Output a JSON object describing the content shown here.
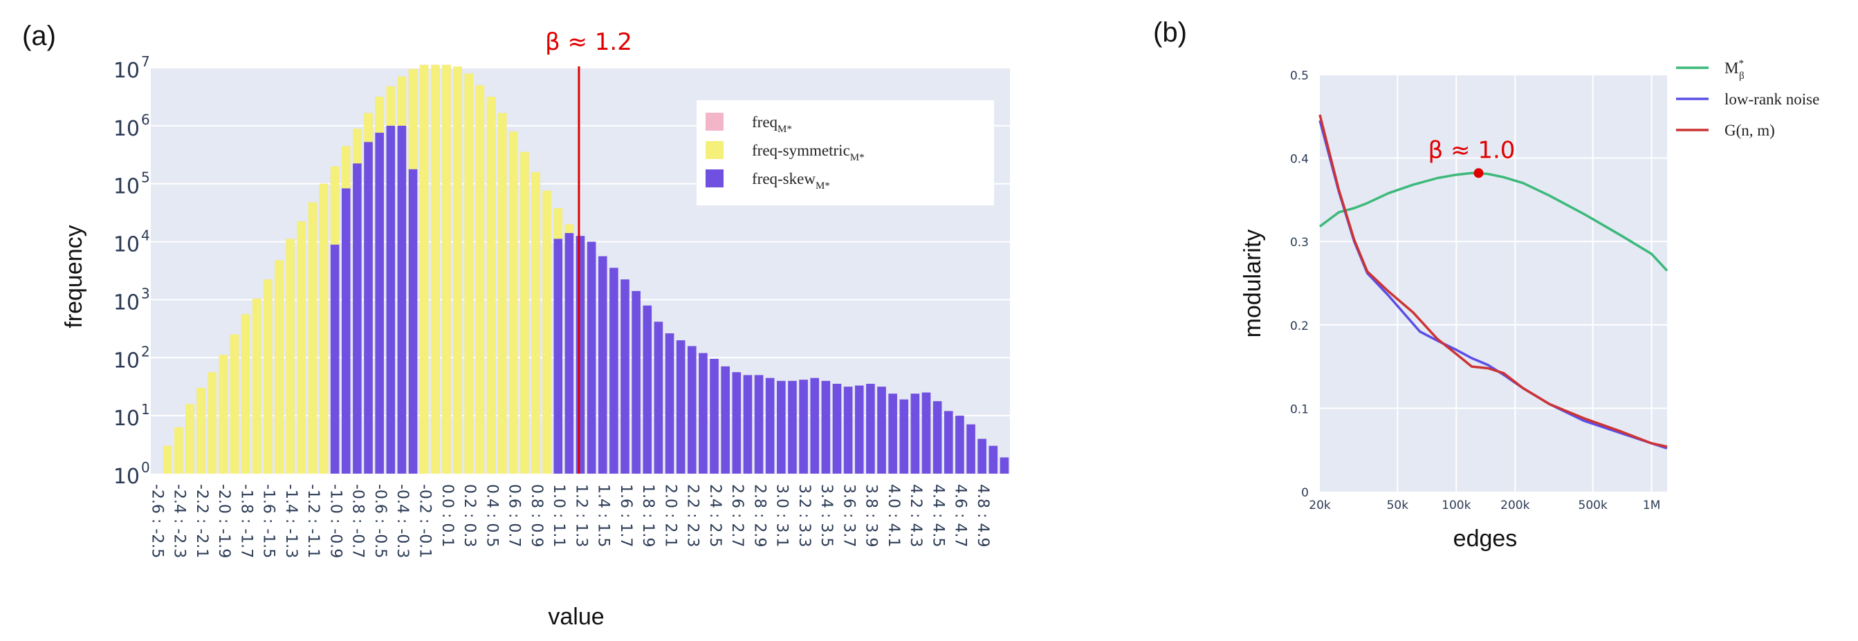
{
  "panels": {
    "a_label": "(a)",
    "b_label": "(b)"
  },
  "chart_data": [
    {
      "type": "bar",
      "panel": "(a)",
      "xlabel": "value",
      "ylabel": "frequency",
      "yscale": "log",
      "ylim_log10": [
        0,
        7
      ],
      "yticks": [
        {
          "base": "10",
          "exp": "7",
          "v": 7
        },
        {
          "base": "10",
          "exp": "6",
          "v": 6
        },
        {
          "base": "10",
          "exp": "5",
          "v": 5
        },
        {
          "base": "10",
          "exp": "4",
          "v": 4
        },
        {
          "base": "10",
          "exp": "3",
          "v": 3
        },
        {
          "base": "10",
          "exp": "2",
          "v": 2
        },
        {
          "base": "10",
          "exp": "1",
          "v": 1
        },
        {
          "base": "10",
          "exp": "0",
          "v": 0
        }
      ],
      "categories": [
        "-2.6 : -2.5",
        "-2.4 : -2.3",
        "-2.2 : -2.1",
        "-2.0 : -1.9",
        "-1.8 : -1.7",
        "-1.6 : -1.5",
        "-1.4 : -1.3",
        "-1.2 : -1.1",
        "-1.0 : -0.9",
        "-0.8 : -0.7",
        "-0.6 : -0.5",
        "-0.4 : -0.3",
        "-0.2 : -0.1",
        "0.0 : 0.1",
        "0.2 : 0.3",
        "0.4 : 0.5",
        "0.6 : 0.7",
        "0.8 : 0.9",
        "1.0 : 1.1",
        "1.2 : 1.3",
        "1.4 : 1.5",
        "1.6 : 1.7",
        "1.8 : 1.9",
        "2.0 : 2.1",
        "2.2 : 2.3",
        "2.4 : 2.5",
        "2.6 : 2.7",
        "2.8 : 2.9",
        "3.0 : 3.1",
        "3.2 : 3.3",
        "3.4 : 3.5",
        "3.6 : 3.7",
        "3.8 : 3.9",
        "4.0 : 4.1",
        "4.2 : 4.3",
        "4.4 : 4.5",
        "4.6 : 4.7",
        "4.8 : 4.9"
      ],
      "bin_start": -2.6,
      "bin_width": 0.1,
      "series": [
        {
          "name": "freq",
          "name_sub": "M*",
          "color": "#f2b6c8",
          "log10_values": [
            null,
            0.48,
            0.8,
            1.2,
            1.48,
            1.75,
            2.05,
            2.4,
            2.75,
            3.02,
            3.35,
            3.68,
            4.05,
            4.35,
            4.68,
            5.0,
            5.3,
            5.65,
            5.95,
            6.22,
            6.5,
            6.68,
            6.85,
            6.98,
            7.05,
            7.08,
            7.07,
            7.02,
            6.9,
            6.7,
            6.5,
            6.22,
            5.9,
            5.55,
            5.2,
            4.88,
            4.58,
            4.3,
            4.05,
            3.8,
            3.6,
            3.4,
            3.2,
            3.0,
            2.8,
            2.62,
            2.42,
            2.3,
            2.2,
            2.08,
            1.98,
            1.85,
            1.75,
            1.7,
            1.7,
            1.65,
            1.6,
            1.6,
            1.62,
            1.65,
            1.6,
            1.55,
            1.5,
            1.52,
            1.55,
            1.5,
            1.38,
            1.28,
            1.38,
            1.4,
            1.25,
            1.08,
            1.0,
            0.85,
            0.6,
            0.48,
            0.28
          ]
        },
        {
          "name": "freq-symmetric",
          "name_sub": "M*",
          "color": "#f5f07a",
          "log10_values": [
            null,
            0.48,
            0.8,
            1.2,
            1.48,
            1.75,
            2.05,
            2.4,
            2.75,
            3.02,
            3.35,
            3.68,
            4.05,
            4.35,
            4.68,
            5.0,
            5.3,
            5.65,
            5.95,
            6.22,
            6.5,
            6.68,
            6.85,
            6.98,
            7.05,
            7.08,
            7.07,
            7.02,
            6.9,
            6.7,
            6.5,
            6.22,
            5.9,
            5.55,
            5.2,
            4.88,
            4.58,
            4.3,
            4.05,
            3.8,
            3.6,
            3.4,
            3.2,
            3.0,
            2.8,
            2.55,
            2.3,
            2.05,
            1.8,
            1.55,
            1.3,
            1.05,
            0.8,
            0.55,
            0.3,
            null,
            null,
            null,
            null,
            null,
            null,
            null,
            null,
            null,
            null,
            null,
            null,
            null,
            null,
            null,
            null,
            null,
            null,
            null,
            null,
            null,
            null
          ]
        },
        {
          "name": "freq-skew",
          "name_sub": "M*",
          "color": "#7050e0",
          "log10_values": [
            null,
            null,
            null,
            null,
            null,
            null,
            null,
            null,
            null,
            null,
            null,
            null,
            null,
            null,
            null,
            null,
            3.95,
            4.92,
            5.35,
            5.72,
            5.88,
            6.0,
            6.0,
            5.25,
            null,
            null,
            null,
            null,
            null,
            null,
            null,
            null,
            null,
            null,
            null,
            null,
            4.05,
            4.15,
            4.1,
            4.0,
            3.75,
            3.55,
            3.35,
            3.15,
            2.9,
            2.62,
            2.42,
            2.3,
            2.2,
            2.08,
            1.98,
            1.85,
            1.75,
            1.7,
            1.7,
            1.65,
            1.6,
            1.6,
            1.62,
            1.65,
            1.6,
            1.55,
            1.5,
            1.52,
            1.55,
            1.5,
            1.38,
            1.28,
            1.38,
            1.4,
            1.25,
            1.08,
            1.0,
            0.85,
            0.6,
            0.48,
            0.28
          ]
        }
      ],
      "vline": {
        "x": 1.2,
        "label": "β ≈ 1.2",
        "color": "#e00000"
      },
      "legend": {
        "placement": "top-right"
      },
      "grid": true
    },
    {
      "type": "line",
      "panel": "(b)",
      "xlabel": "edges",
      "ylabel": "modularity",
      "xscale": "log",
      "xlim": [
        20000,
        1200000
      ],
      "ylim": [
        0,
        0.5
      ],
      "xticks": [
        {
          "v": 20000,
          "label": "20k"
        },
        {
          "v": 50000,
          "label": "50k"
        },
        {
          "v": 100000,
          "label": "100k"
        },
        {
          "v": 200000,
          "label": "200k"
        },
        {
          "v": 500000,
          "label": "500k"
        },
        {
          "v": 1000000,
          "label": "1M"
        }
      ],
      "yticks": [
        {
          "v": 0,
          "label": "0"
        },
        {
          "v": 0.1,
          "label": "0.1"
        },
        {
          "v": 0.2,
          "label": "0.2"
        },
        {
          "v": 0.3,
          "label": "0.3"
        },
        {
          "v": 0.4,
          "label": "0.4"
        },
        {
          "v": 0.5,
          "label": "0.5"
        }
      ],
      "series": [
        {
          "name": "M",
          "name_sub": "β",
          "name_sup": "*",
          "color": "#3cb97a",
          "x": [
            20000,
            25000,
            30000,
            35000,
            45000,
            60000,
            80000,
            100000,
            120000,
            145000,
            175000,
            220000,
            300000,
            450000,
            700000,
            1000000,
            1200000
          ],
          "y": [
            0.318,
            0.335,
            0.34,
            0.346,
            0.358,
            0.368,
            0.376,
            0.38,
            0.382,
            0.381,
            0.377,
            0.37,
            0.355,
            0.333,
            0.307,
            0.285,
            0.265
          ]
        },
        {
          "name": "low-rank noise",
          "color": "#5a4ee6",
          "x": [
            20000,
            25000,
            30000,
            35000,
            45000,
            65000,
            80000,
            100000,
            120000,
            145000,
            175000,
            220000,
            300000,
            450000,
            700000,
            1000000,
            1200000
          ],
          "y": [
            0.445,
            0.36,
            0.3,
            0.262,
            0.235,
            0.192,
            0.181,
            0.17,
            0.16,
            0.152,
            0.14,
            0.124,
            0.105,
            0.085,
            0.07,
            0.058,
            0.052
          ]
        },
        {
          "name": "G(n, m)",
          "color": "#cc3333",
          "x": [
            20000,
            25000,
            30000,
            35000,
            45000,
            60000,
            80000,
            100000,
            120000,
            145000,
            175000,
            220000,
            300000,
            450000,
            700000,
            1000000,
            1200000
          ],
          "y": [
            0.452,
            0.362,
            0.302,
            0.264,
            0.24,
            0.215,
            0.183,
            0.165,
            0.15,
            0.148,
            0.142,
            0.124,
            0.105,
            0.088,
            0.072,
            0.058,
            0.054
          ]
        }
      ],
      "annotation": {
        "x": 130000,
        "y": 0.382,
        "label": "β ≈ 1.0",
        "color": "#e00000"
      },
      "legend": {
        "placement": "outside-right"
      },
      "grid": true
    }
  ]
}
